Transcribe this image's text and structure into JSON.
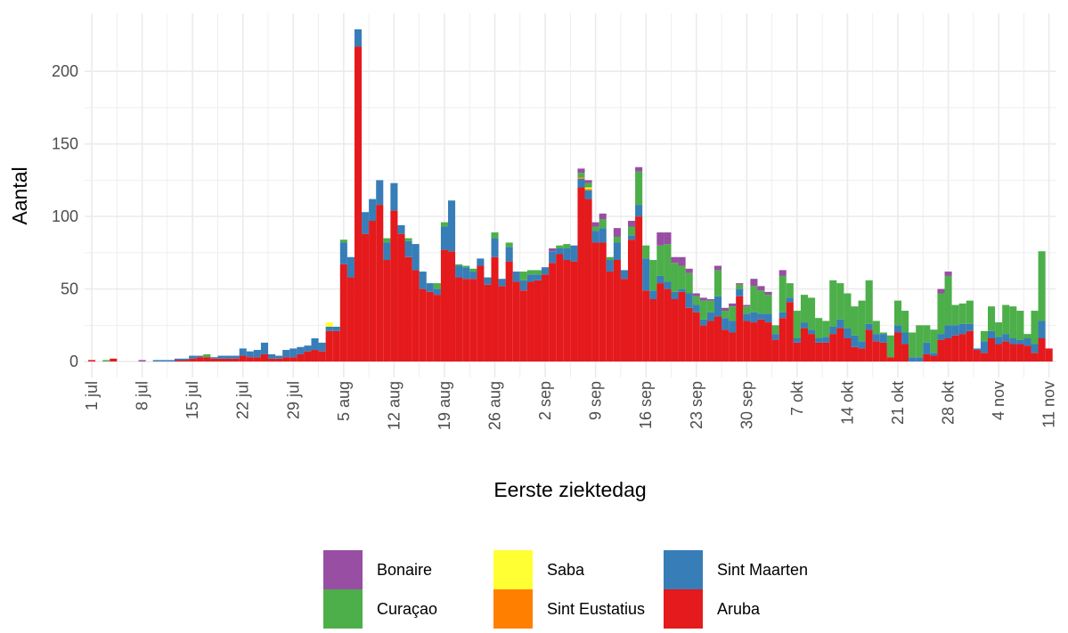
{
  "chart_data": {
    "type": "stacked_bar",
    "x_label": "Eerste ziektedag",
    "y_label": "Aantal",
    "categories": [
      "1 jul",
      null,
      null,
      null,
      null,
      null,
      null,
      "8 jul",
      null,
      null,
      null,
      null,
      null,
      null,
      "15 jul",
      null,
      null,
      null,
      null,
      null,
      null,
      "22 jul",
      null,
      null,
      null,
      null,
      null,
      null,
      "29 jul",
      null,
      null,
      null,
      null,
      null,
      null,
      "5 aug",
      null,
      null,
      null,
      null,
      null,
      null,
      "12 aug",
      null,
      null,
      null,
      null,
      null,
      null,
      "19 aug",
      null,
      null,
      null,
      null,
      null,
      null,
      "26 aug",
      null,
      null,
      null,
      null,
      null,
      null,
      "2 sep",
      null,
      null,
      null,
      null,
      null,
      null,
      "9 sep",
      null,
      null,
      null,
      null,
      null,
      null,
      "16 sep",
      null,
      null,
      null,
      null,
      null,
      null,
      "23 sep",
      null,
      null,
      null,
      null,
      null,
      null,
      "30 sep",
      null,
      null,
      null,
      null,
      null,
      null,
      "7 okt",
      null,
      null,
      null,
      null,
      null,
      null,
      "14 okt",
      null,
      null,
      null,
      null,
      null,
      null,
      "21 okt",
      null,
      null,
      null,
      null,
      null,
      null,
      "28 okt",
      null,
      null,
      null,
      null,
      null,
      null,
      "4 nov",
      null,
      null,
      null,
      null,
      null,
      null,
      "11 nov"
    ],
    "series": [
      {
        "name": "Bonaire",
        "color": "#984ea3",
        "values": [
          0,
          0,
          0,
          0,
          0,
          0,
          0,
          1,
          0,
          0,
          0,
          0,
          0,
          0,
          0,
          0,
          0,
          0,
          0,
          0,
          0,
          0,
          0,
          0,
          0,
          0,
          0,
          0,
          0,
          0,
          0,
          0,
          0,
          0,
          0,
          0,
          0,
          0,
          0,
          0,
          0,
          0,
          0,
          0,
          0,
          0,
          0,
          0,
          0,
          0,
          0,
          0,
          0,
          0,
          0,
          0,
          0,
          0,
          0,
          0,
          0,
          0,
          0,
          0,
          2,
          0,
          0,
          0,
          3,
          2,
          3,
          4,
          0,
          6,
          0,
          4,
          3,
          0,
          0,
          9,
          8,
          4,
          6,
          3,
          2,
          2,
          1,
          3,
          2,
          2,
          1,
          1,
          5,
          3,
          2,
          0,
          4,
          0,
          0,
          0,
          0,
          0,
          0,
          0,
          0,
          0,
          0,
          0,
          0,
          0,
          0,
          0,
          0,
          0,
          0,
          0,
          0,
          0,
          3,
          3,
          0,
          0,
          0,
          0,
          0,
          0,
          0,
          0,
          0,
          0,
          0,
          0,
          0,
          0
        ]
      },
      {
        "name": "Curaçao",
        "color": "#4daf4a",
        "values": [
          0,
          0,
          1,
          0,
          0,
          0,
          0,
          0,
          0,
          0,
          0,
          0,
          0,
          0,
          0,
          0,
          2,
          0,
          0,
          0,
          0,
          0,
          0,
          0,
          0,
          0,
          0,
          0,
          0,
          0,
          0,
          0,
          0,
          0,
          0,
          2,
          0,
          0,
          0,
          0,
          0,
          3,
          0,
          0,
          2,
          0,
          0,
          0,
          4,
          3,
          0,
          1,
          1,
          2,
          0,
          0,
          4,
          0,
          3,
          0,
          6,
          3,
          3,
          0,
          0,
          2,
          3,
          0,
          3,
          3,
          3,
          6,
          2,
          4,
          0,
          6,
          23,
          9,
          21,
          21,
          26,
          20,
          16,
          14,
          6,
          13,
          8,
          18,
          5,
          10,
          3,
          5,
          18,
          16,
          13,
          6,
          25,
          10,
          19,
          19,
          22,
          14,
          11,
          32,
          25,
          24,
          20,
          28,
          30,
          9,
          1,
          15,
          17,
          15,
          17,
          22,
          12,
          16,
          28,
          34,
          14,
          14,
          16,
          0,
          7,
          17,
          10,
          20,
          22,
          20,
          3,
          23,
          48,
          0
        ]
      },
      {
        "name": "Saba",
        "color": "#ffff33",
        "values": [
          0,
          0,
          0,
          0,
          0,
          0,
          0,
          0,
          0,
          0,
          0,
          0,
          0,
          0,
          0,
          0,
          0,
          0,
          0,
          0,
          0,
          0,
          0,
          0,
          0,
          0,
          0,
          0,
          0,
          0,
          0,
          0,
          0,
          3,
          0,
          0,
          0,
          0,
          0,
          0,
          0,
          0,
          0,
          0,
          0,
          0,
          0,
          0,
          0,
          0,
          0,
          0,
          0,
          0,
          0,
          0,
          0,
          0,
          0,
          0,
          0,
          0,
          0,
          0,
          0,
          0,
          0,
          0,
          0,
          1,
          0,
          0,
          0,
          0,
          0,
          0,
          0,
          0,
          0,
          0,
          0,
          0,
          0,
          0,
          0,
          0,
          0,
          0,
          0,
          0,
          0,
          0,
          0,
          0,
          0,
          0,
          0,
          0,
          0,
          0,
          0,
          0,
          0,
          0,
          0,
          0,
          0,
          0,
          0,
          0,
          0,
          0,
          0,
          0,
          0,
          0,
          0,
          0,
          0,
          0,
          0,
          0,
          0,
          0,
          0,
          0,
          0,
          0,
          0,
          0,
          0,
          0,
          0,
          0
        ]
      },
      {
        "name": "Sint Eustatius",
        "color": "#ff7f00",
        "values": [
          0,
          0,
          0,
          0,
          0,
          0,
          0,
          0,
          0,
          0,
          0,
          0,
          0,
          0,
          0,
          0,
          0,
          0,
          0,
          0,
          0,
          0,
          0,
          0,
          0,
          0,
          0,
          0,
          0,
          0,
          0,
          0,
          0,
          0,
          0,
          0,
          0,
          0,
          0,
          0,
          0,
          0,
          0,
          0,
          0,
          0,
          0,
          0,
          0,
          0,
          0,
          0,
          0,
          0,
          0,
          0,
          0,
          0,
          0,
          0,
          0,
          0,
          0,
          0,
          0,
          0,
          0,
          0,
          1,
          1,
          0,
          0,
          0,
          0,
          0,
          0,
          0,
          0,
          0,
          0,
          0,
          0,
          0,
          0,
          0,
          0,
          0,
          0,
          0,
          0,
          0,
          0,
          0,
          0,
          0,
          0,
          0,
          0,
          0,
          0,
          0,
          0,
          0,
          0,
          0,
          0,
          0,
          0,
          0,
          0,
          0,
          0,
          0,
          0,
          0,
          0,
          0,
          0,
          0,
          0,
          0,
          0,
          0,
          0,
          0,
          0,
          0,
          0,
          0,
          0,
          0,
          0,
          0,
          0
        ]
      },
      {
        "name": "Sint Maarten",
        "color": "#377eb8",
        "values": [
          0,
          0,
          0,
          0,
          0,
          0,
          0,
          0,
          0,
          1,
          1,
          1,
          1,
          1,
          2,
          1,
          0,
          1,
          2,
          2,
          2,
          5,
          4,
          5,
          8,
          3,
          2,
          5,
          6,
          5,
          4,
          8,
          6,
          3,
          3,
          15,
          14,
          12,
          15,
          15,
          17,
          12,
          19,
          6,
          11,
          18,
          12,
          6,
          4,
          16,
          35,
          8,
          8,
          5,
          5,
          5,
          13,
          5,
          10,
          7,
          7,
          5,
          4,
          5,
          8,
          4,
          8,
          11,
          6,
          6,
          8,
          10,
          8,
          12,
          6,
          3,
          8,
          22,
          6,
          5,
          5,
          5,
          2,
          10,
          5,
          4,
          6,
          14,
          8,
          8,
          5,
          5,
          7,
          4,
          6,
          4,
          4,
          3,
          3,
          4,
          3,
          3,
          4,
          5,
          6,
          7,
          8,
          5,
          4,
          5,
          6,
          0,
          5,
          8,
          3,
          3,
          8,
          2,
          4,
          9,
          7,
          7,
          5,
          1,
          8,
          5,
          5,
          5,
          4,
          3,
          5,
          6,
          12,
          0
        ]
      },
      {
        "name": "Aruba",
        "color": "#e41a1c",
        "values": [
          1,
          0,
          0,
          2,
          0,
          0,
          0,
          0,
          0,
          0,
          0,
          0,
          1,
          1,
          2,
          3,
          3,
          2,
          2,
          2,
          2,
          4,
          3,
          3,
          5,
          2,
          2,
          3,
          3,
          5,
          7,
          8,
          7,
          21,
          21,
          67,
          58,
          217,
          88,
          97,
          108,
          70,
          104,
          88,
          72,
          63,
          50,
          48,
          46,
          77,
          76,
          58,
          57,
          57,
          66,
          53,
          72,
          52,
          69,
          55,
          49,
          55,
          56,
          60,
          68,
          74,
          70,
          69,
          120,
          112,
          82,
          82,
          62,
          70,
          57,
          84,
          100,
          49,
          43,
          54,
          50,
          43,
          48,
          37,
          34,
          25,
          28,
          31,
          22,
          20,
          45,
          28,
          27,
          29,
          27,
          15,
          30,
          41,
          13,
          23,
          19,
          13,
          13,
          19,
          23,
          16,
          10,
          9,
          22,
          14,
          13,
          3,
          20,
          12,
          0,
          0,
          5,
          4,
          15,
          16,
          18,
          19,
          21,
          8,
          6,
          16,
          12,
          14,
          12,
          12,
          11,
          6,
          16,
          9
        ]
      }
    ],
    "ylim": [
      -11,
      240
    ],
    "yticks": [
      0,
      50,
      100,
      150,
      200
    ],
    "grid": true
  }
}
